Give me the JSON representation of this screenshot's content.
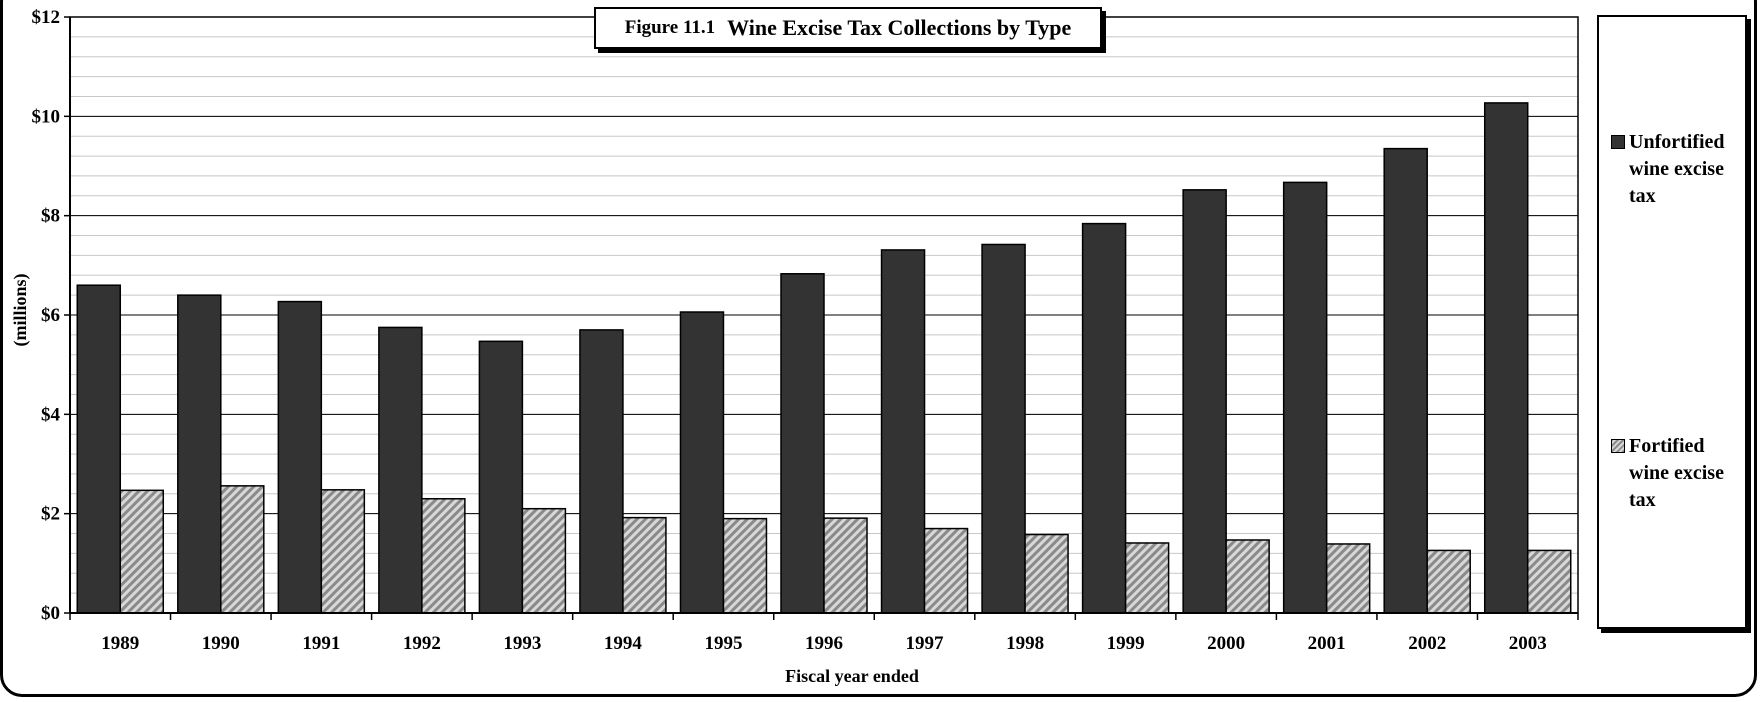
{
  "chart_data": {
    "type": "bar",
    "title_prefix": "Figure 11.1",
    "title": "Wine Excise Tax Collections by Type",
    "xlabel": "Fiscal year ended",
    "ylabel": "(millions)",
    "categories": [
      "1989",
      "1990",
      "1991",
      "1992",
      "1993",
      "1994",
      "1995",
      "1996",
      "1997",
      "1998",
      "1999",
      "2000",
      "2001",
      "2002",
      "2003"
    ],
    "series": [
      {
        "name": "Unfortified wine excise tax",
        "pattern": "solid",
        "color": "#333333",
        "values": [
          6.6,
          6.4,
          6.27,
          5.75,
          5.47,
          5.7,
          6.06,
          6.83,
          7.31,
          7.42,
          7.84,
          8.52,
          8.67,
          9.35,
          10.27
        ]
      },
      {
        "name": "Fortified wine excise tax",
        "pattern": "diagonal-hatch",
        "color": "#9a9a9a",
        "values": [
          2.47,
          2.56,
          2.48,
          2.3,
          2.1,
          1.92,
          1.9,
          1.91,
          1.7,
          1.58,
          1.41,
          1.47,
          1.39,
          1.26,
          1.26
        ]
      }
    ],
    "ylim": [
      0,
      12
    ],
    "y_ticks": [
      0,
      2,
      4,
      6,
      8,
      10,
      12
    ],
    "y_tick_labels": [
      "$0",
      "$2",
      "$4",
      "$6",
      "$8",
      "$10",
      "$12"
    ],
    "minor_gridline_step": 0.4,
    "grid": true,
    "legend_position": "right"
  }
}
